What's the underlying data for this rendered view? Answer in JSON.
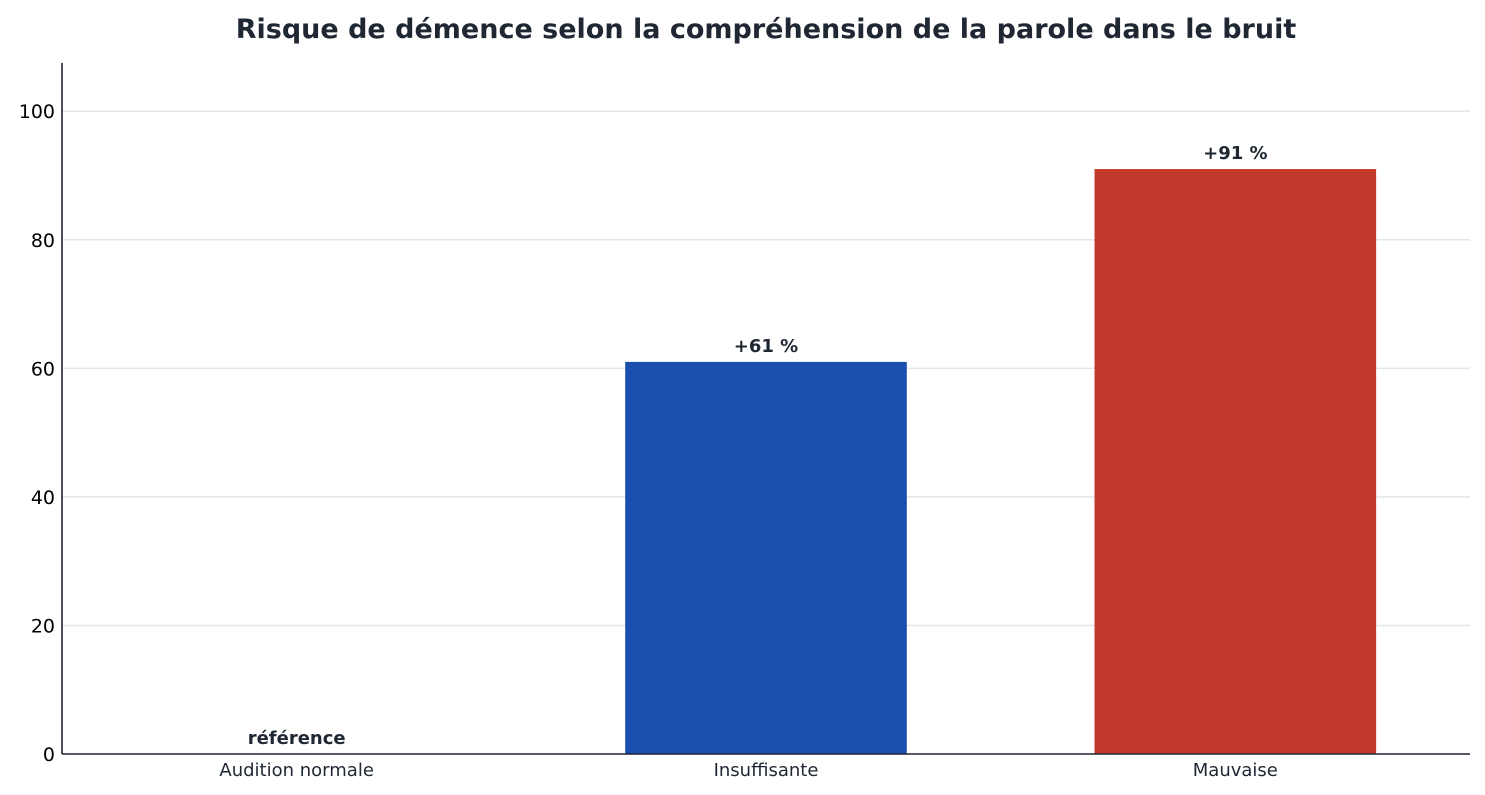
{
  "chart_data": {
    "type": "bar",
    "title": "Risque de démence selon la compréhension de la parole dans le bruit",
    "xlabel": "",
    "ylabel": "",
    "categories": [
      "Audition normale",
      "Insuffisante",
      "Mauvaise"
    ],
    "values": [
      0,
      61,
      91
    ],
    "data_labels": [
      "référence",
      "+61 %",
      "+91 %"
    ],
    "colors": [
      "#1a4fb0",
      "#1a4fb0",
      "#c0392b"
    ],
    "ylim": [
      0,
      107.5
    ],
    "yticks": [
      0,
      20,
      40,
      60,
      80,
      100
    ],
    "grid": true,
    "legend": "none"
  }
}
